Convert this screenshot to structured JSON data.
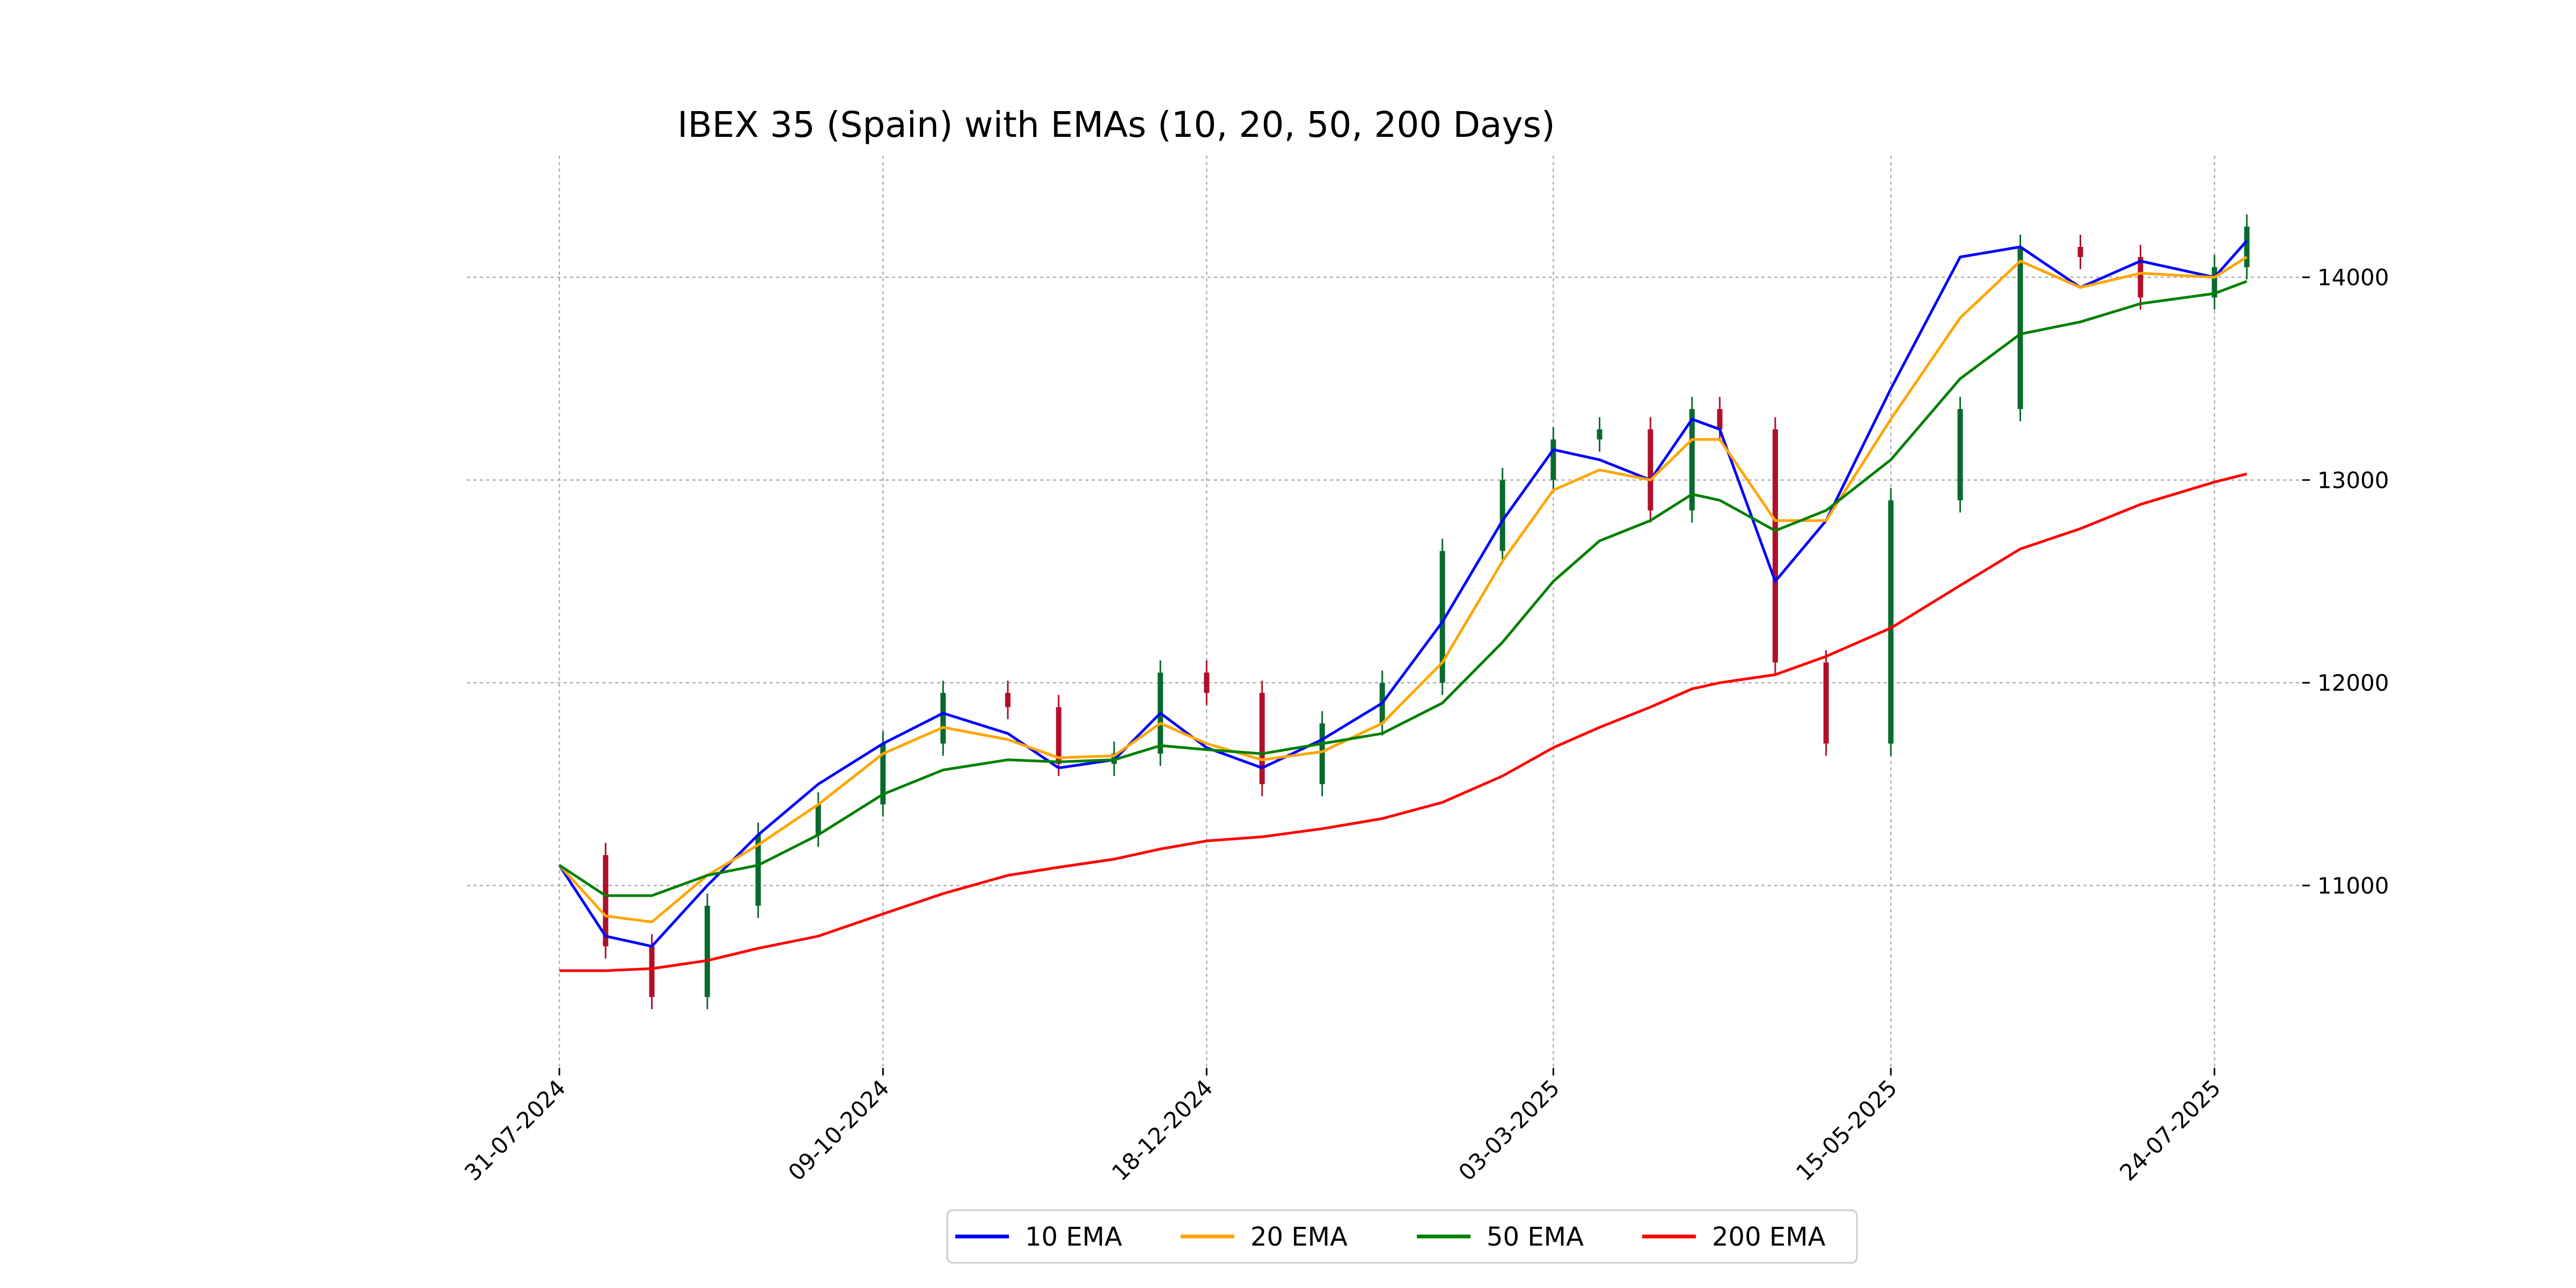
{
  "chart_data": {
    "type": "line",
    "title": "IBEX 35 (Spain) with EMAs (10, 20, 50, 200 Days)",
    "x_dates": [
      "2024-07-31",
      "2024-08-10",
      "2024-08-20",
      "2024-09-01",
      "2024-09-12",
      "2024-09-25",
      "2024-10-09",
      "2024-10-22",
      "2024-11-05",
      "2024-11-16",
      "2024-11-28",
      "2024-12-08",
      "2024-12-18",
      "2024-12-30",
      "2025-01-12",
      "2025-01-25",
      "2025-02-07",
      "2025-02-20",
      "2025-03-03",
      "2025-03-13",
      "2025-03-24",
      "2025-04-02",
      "2025-04-08",
      "2025-04-20",
      "2025-05-01",
      "2025-05-15",
      "2025-05-30",
      "2025-06-12",
      "2025-06-25",
      "2025-07-08",
      "2025-07-24",
      "2025-07-31"
    ],
    "xtick_labels": [
      "31-07-2024",
      "09-10-2024",
      "18-12-2024",
      "03-03-2025",
      "15-05-2025",
      "24-07-2025"
    ],
    "xtick_dates": [
      "2024-07-31",
      "2024-10-09",
      "2024-12-18",
      "2025-03-03",
      "2025-05-15",
      "2025-07-24"
    ],
    "yticks": [
      11000,
      12000,
      13000,
      14000
    ],
    "ytick_labels": [
      "11000",
      "12000",
      "13000",
      "14000"
    ],
    "xlim": [
      "2024-07-11",
      "2025-08-12"
    ],
    "ylim": [
      10100,
      14600
    ],
    "grid": true,
    "y_axis_side": "right",
    "legend_position": "bottom-center",
    "close": [
      11150,
      10700,
      10450,
      10900,
      11250,
      11400,
      11700,
      11950,
      11880,
      11600,
      11650,
      12050,
      11950,
      11500,
      11800,
      12000,
      12650,
      13000,
      13200,
      13250,
      12850,
      13350,
      13250,
      12100,
      11700,
      12900,
      13350,
      14150,
      14100,
      13900,
      14050,
      14250
    ],
    "series": [
      {
        "name": "10 EMA",
        "color": "#0000ff",
        "values": [
          11100,
          10750,
          10700,
          11000,
          11250,
          11500,
          11700,
          11850,
          11750,
          11580,
          11620,
          11850,
          11680,
          11580,
          11720,
          11900,
          12300,
          12800,
          13150,
          13100,
          13000,
          13300,
          13250,
          12500,
          12800,
          13450,
          14100,
          14150,
          13950,
          14080,
          14000,
          14180
        ]
      },
      {
        "name": "20 EMA",
        "color": "#ffa500",
        "values": [
          11100,
          10850,
          10820,
          11050,
          11200,
          11400,
          11650,
          11780,
          11720,
          11630,
          11640,
          11800,
          11700,
          11620,
          11660,
          11800,
          12100,
          12600,
          12950,
          13050,
          13000,
          13200,
          13200,
          12800,
          12800,
          13300,
          13800,
          14080,
          13950,
          14020,
          14000,
          14100
        ]
      },
      {
        "name": "50 EMA",
        "color": "#008000",
        "values": [
          11100,
          10950,
          10950,
          11050,
          11100,
          11250,
          11450,
          11570,
          11620,
          11610,
          11620,
          11690,
          11670,
          11650,
          11700,
          11750,
          11900,
          12200,
          12500,
          12700,
          12800,
          12930,
          12900,
          12750,
          12850,
          13100,
          13500,
          13720,
          13780,
          13870,
          13920,
          13980
        ]
      },
      {
        "name": "200 EMA",
        "color": "#ff0000",
        "values": [
          10580,
          10580,
          10590,
          10630,
          10690,
          10750,
          10860,
          10960,
          11050,
          11090,
          11130,
          11180,
          11220,
          11240,
          11280,
          11330,
          11410,
          11540,
          11680,
          11780,
          11880,
          11970,
          12000,
          12040,
          12130,
          12270,
          12480,
          12660,
          12760,
          12880,
          12990,
          13030
        ]
      }
    ]
  }
}
